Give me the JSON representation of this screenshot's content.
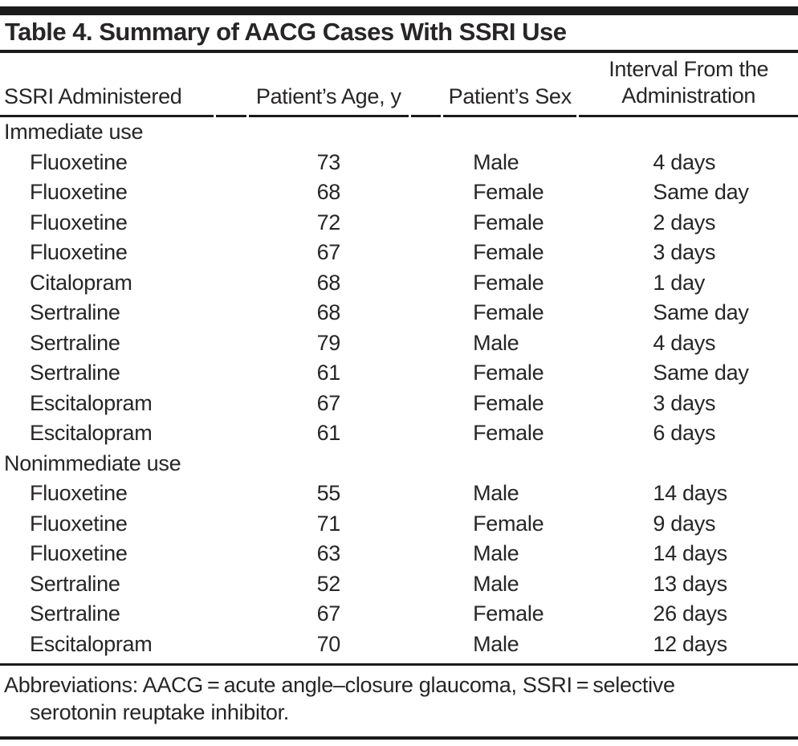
{
  "table": {
    "title": "Table 4. Summary of AACG Cases With SSRI Use",
    "columns": [
      {
        "label": "SSRI Administered"
      },
      {
        "label": "Patient’s Age, y"
      },
      {
        "label": "Patient’s Sex"
      },
      {
        "label": "Interval From the\nAdministration"
      }
    ],
    "sections": [
      {
        "label": "Immediate use",
        "rows": [
          {
            "drug": "Fluoxetine",
            "age": "73",
            "sex": "Male",
            "interval": "4 days"
          },
          {
            "drug": "Fluoxetine",
            "age": "68",
            "sex": "Female",
            "interval": "Same day"
          },
          {
            "drug": "Fluoxetine",
            "age": "72",
            "sex": "Female",
            "interval": "2 days"
          },
          {
            "drug": "Fluoxetine",
            "age": "67",
            "sex": "Female",
            "interval": "3 days"
          },
          {
            "drug": "Citalopram",
            "age": "68",
            "sex": "Female",
            "interval": "1 day"
          },
          {
            "drug": "Sertraline",
            "age": "68",
            "sex": "Female",
            "interval": "Same day"
          },
          {
            "drug": "Sertraline",
            "age": "79",
            "sex": "Male",
            "interval": "4 days"
          },
          {
            "drug": "Sertraline",
            "age": "61",
            "sex": "Female",
            "interval": "Same day"
          },
          {
            "drug": "Escitalopram",
            "age": "67",
            "sex": "Female",
            "interval": "3 days"
          },
          {
            "drug": "Escitalopram",
            "age": "61",
            "sex": "Female",
            "interval": "6 days"
          }
        ]
      },
      {
        "label": "Nonimmediate use",
        "rows": [
          {
            "drug": "Fluoxetine",
            "age": "55",
            "sex": "Male",
            "interval": "14 days"
          },
          {
            "drug": "Fluoxetine",
            "age": "71",
            "sex": "Female",
            "interval": "9 days"
          },
          {
            "drug": "Fluoxetine",
            "age": "63",
            "sex": "Male",
            "interval": "14 days"
          },
          {
            "drug": "Sertraline",
            "age": "52",
            "sex": "Male",
            "interval": "13 days"
          },
          {
            "drug": "Sertraline",
            "age": "67",
            "sex": "Female",
            "interval": "26 days"
          },
          {
            "drug": "Escitalopram",
            "age": "70",
            "sex": "Male",
            "interval": "12 days"
          }
        ]
      }
    ]
  },
  "footnote": {
    "line1": "Abbreviations: AACG = acute angle–closure glaucoma, SSRI = selective",
    "line2": "serotonin reuptake inhibitor."
  },
  "colors": {
    "text": "#272526",
    "rule": "#1b1b1b",
    "background": "#ffffff"
  }
}
